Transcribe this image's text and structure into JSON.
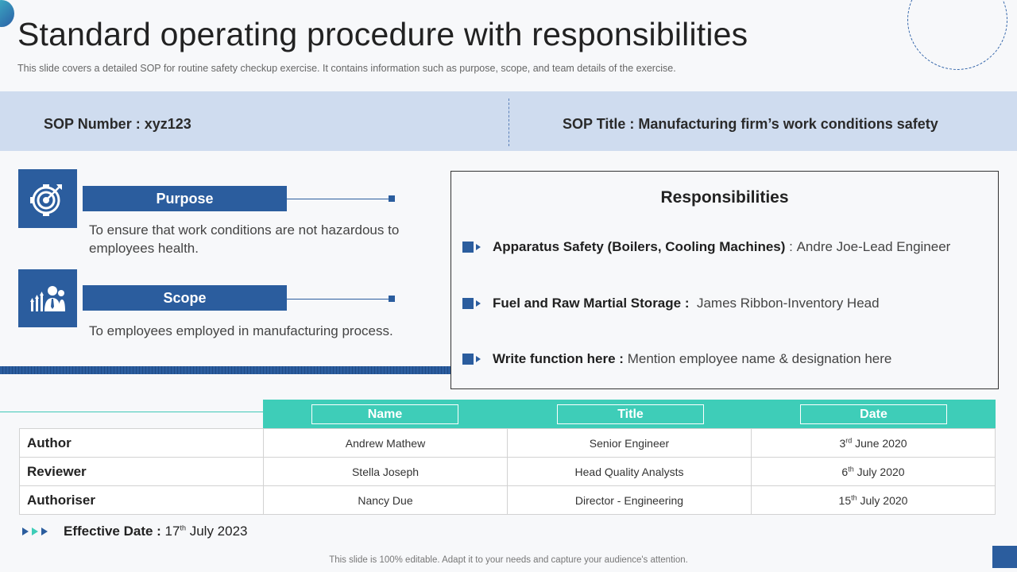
{
  "page": {
    "title": "Standard operating procedure with responsibilities",
    "subtitle": "This slide covers a detailed SOP for routine safety checkup exercise. It contains information such as purpose, scope, and team details of the exercise."
  },
  "sop": {
    "number": "SOP Number : xyz123",
    "title": "SOP Title : Manufacturing  firm’s work conditions safety"
  },
  "sections": [
    {
      "label": "Purpose",
      "icon": "target-icon",
      "description": "To ensure that work conditions are not hazardous to employees health."
    },
    {
      "label": "Scope",
      "icon": "team-growth-icon",
      "description": "To employees employed in manufacturing process."
    }
  ],
  "responsibilities": {
    "heading": "Responsibilities",
    "items": [
      {
        "function": "Apparatus Safety (Boilers, Cooling Machines)",
        "separator": " : ",
        "person": "Andre Joe-Lead Engineer"
      },
      {
        "function": "Fuel and Raw Martial Storage :",
        "separator": "  ",
        "person": "James Ribbon-Inventory Head"
      },
      {
        "function": "Write function here :",
        "separator": " ",
        "person": "Mention employee name & designation here"
      }
    ]
  },
  "approvals": {
    "columns": [
      "Name",
      "Title",
      "Date"
    ],
    "rows": [
      {
        "role": "Author",
        "name": "Andrew Mathew",
        "title": "Senior Engineer",
        "date_day": "3",
        "date_suffix": "rd",
        "date_rest": " June 2020"
      },
      {
        "role": "Reviewer",
        "name": "Stella Joseph",
        "title": "Head Quality Analysts",
        "date_day": "6",
        "date_suffix": "th",
        "date_rest": " July 2020"
      },
      {
        "role": "Authoriser",
        "name": "Nancy Due",
        "title": "Director - Engineering",
        "date_day": "15",
        "date_suffix": "th",
        "date_rest": " July 2020"
      }
    ]
  },
  "effective_date": {
    "label": "Effective Date :",
    "day": " 17",
    "suffix": "th",
    "rest": " July 2023"
  },
  "footer": "This slide is 100% editable. Adapt it to your needs and capture your audience's attention.",
  "colors": {
    "primary": "#2b5d9e",
    "teal": "#3ecdb8",
    "band": "#cfdcef"
  }
}
